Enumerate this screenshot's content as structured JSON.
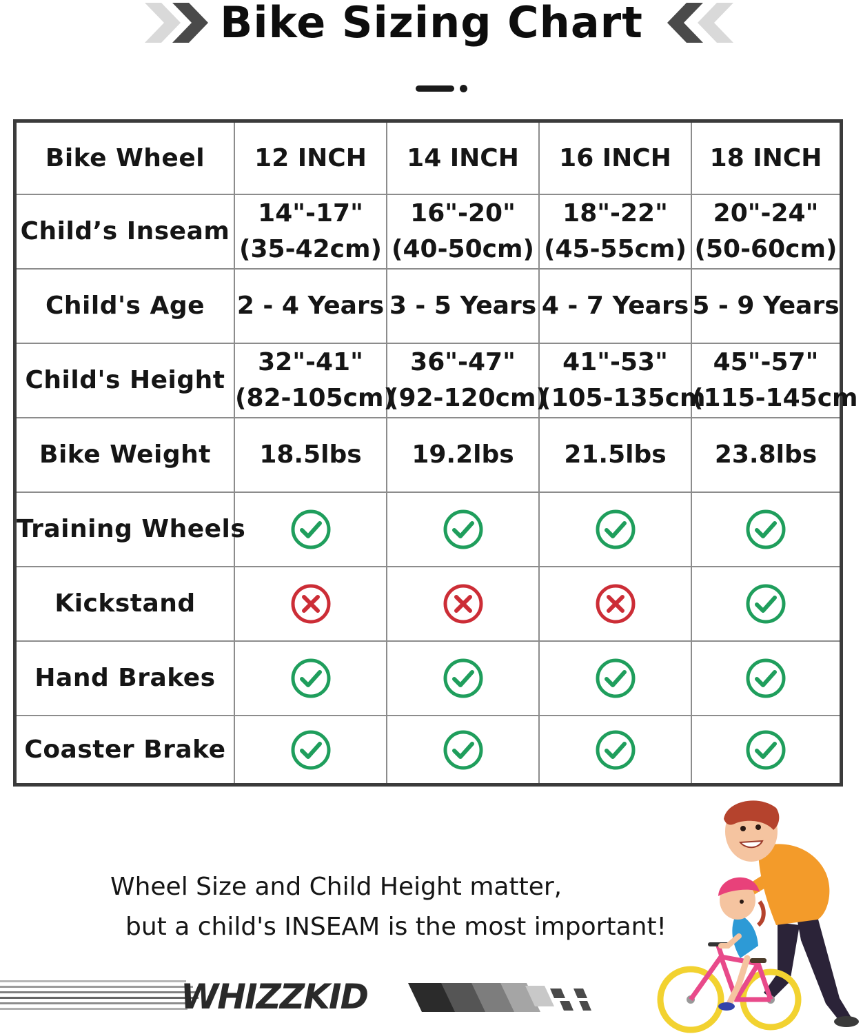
{
  "header": {
    "title": "Bike Sizing Chart",
    "left_icon": "double-chevron-right-icon",
    "right_icon": "double-chevron-left-icon"
  },
  "chart": {
    "columns": [
      "Bike Wheel",
      "12 INCH",
      "14 INCH",
      "16 INCH",
      "18 INCH"
    ],
    "rows": [
      {
        "label": "Child’s Inseam",
        "values": [
          [
            "14\"-17\"",
            "(35-42cm)"
          ],
          [
            "16\"-20\"",
            "(40-50cm)"
          ],
          [
            "18\"-22\"",
            "(45-55cm)"
          ],
          [
            "20\"-24\"",
            "(50-60cm)"
          ]
        ]
      },
      {
        "label": "Child's Age",
        "values": [
          "2 - 4 Years",
          "3 - 5 Years",
          "4 - 7 Years",
          "5 - 9 Years"
        ]
      },
      {
        "label": "Child's Height",
        "values": [
          [
            "32\"-41\"",
            "(82-105cm)"
          ],
          [
            "36\"-47\"",
            "(92-120cm)"
          ],
          [
            "41\"-53\"",
            "(105-135cm"
          ],
          [
            "45\"-57\"",
            "(115-145cm"
          ]
        ]
      },
      {
        "label": "Bike Weight",
        "values": [
          "18.5lbs",
          "19.2lbs",
          "21.5lbs",
          "23.8lbs"
        ]
      },
      {
        "label": "Training Wheels",
        "features": [
          "check",
          "check",
          "check",
          "check"
        ]
      },
      {
        "label": "Kickstand",
        "features": [
          "cross",
          "cross",
          "cross",
          "check"
        ]
      },
      {
        "label": "Hand Brakes",
        "features": [
          "check",
          "check",
          "check",
          "check"
        ]
      },
      {
        "label": "Coaster Brake",
        "features": [
          "check",
          "check",
          "check",
          "check"
        ]
      }
    ],
    "colors": {
      "check": "#1f9e5c",
      "cross": "#cc2d36",
      "border": "#8c8c8c",
      "frame": "#3b3b3b"
    }
  },
  "tagline": {
    "line1": "Wheel Size and Child Height matter,",
    "line2": "but a child's INSEAM is the most important!"
  },
  "brand": {
    "name": "WHIZZKID"
  },
  "illustration": {
    "icon": "parent-teaching-child-bike-illustration"
  }
}
